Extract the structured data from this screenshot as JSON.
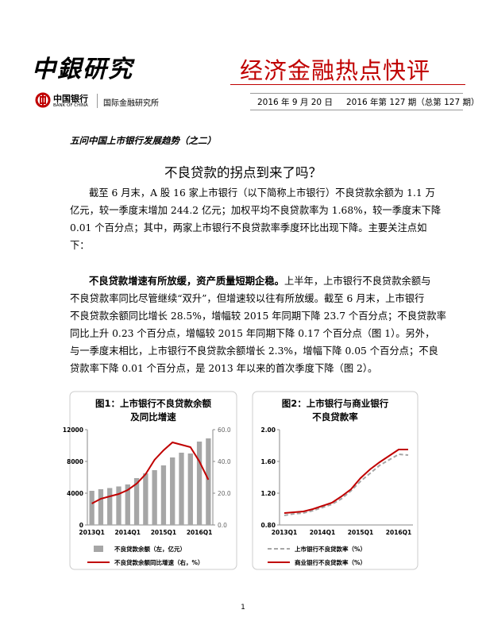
{
  "header": {
    "brand": "中銀研究",
    "report_title": "经济金融热点快评",
    "bank_name": "中国银行",
    "bank_name_en": "BANK OF CHINA",
    "institute": "国际金融研究所",
    "date": "2016 年 9 月 20 日",
    "issue": "2016 年第 127 期（总第 127 期）"
  },
  "series_title": "五问中国上市银行发展趋势（之二）",
  "title": "不良贷款的拐点到来了吗？",
  "paragraphs": [
    {
      "lines": [
        "截至 6 月末，A 股 16 家上市银行（以下简称上市银行）不良贷款余额为 1.1 万",
        "亿元，较一季度末增加 244.2 亿元；加权平均不良贷款率为 1.68%，较一季度末下降",
        "0.01 个百分点；其中，两家上市银行不良贷款率季度环比出现下降。主要关注点如",
        "下："
      ]
    },
    {
      "lead": "不良贷款增速有所放缓，资产质量短期企稳。",
      "lines": [
        "上半年，上市银行不良贷款余额与",
        "不良贷款率同比尽管继续“双升”，但增速较以往有所放缓。截至 6 月末，上市银行",
        "不良贷款余额同比增长 28.5%，增幅较 2015 年同期下降 23.7 个百分点；不良贷款率",
        "同比上升 0.23 个百分点，增幅较 2015 年同期下降 0.17 个百分点（图 1）。另外，",
        "与一季度末相比，上市银行不良贷款余额增长 2.3%，增幅下降 0.05 个百分点；不良",
        "贷款率下降 0.01 个百分点，是 2013 年以来的首次季度下降（图 2）。"
      ]
    }
  ],
  "chart_data": [
    {
      "type": "bar",
      "title": [
        "图1：上市银行不良贷款余额",
        "及同比增速"
      ],
      "categories": [
        "2013Q1",
        null,
        null,
        null,
        "2014Q1",
        null,
        null,
        null,
        "2015Q1",
        null,
        null,
        null,
        "2016Q1",
        null
      ],
      "series": [
        {
          "name": "不良贷款余额（左，亿元）",
          "type": "bar",
          "color": "#a6a6a6",
          "values": [
            4300,
            4500,
            4650,
            4850,
            5100,
            5900,
            6500,
            6900,
            7500,
            8500,
            9100,
            9000,
            10500,
            10900
          ]
        },
        {
          "name": "不良贷款余额同比增速（右，%）",
          "type": "line",
          "axis": "y2",
          "color": "#c00000",
          "values": [
            13.5,
            16.5,
            18,
            19.5,
            22,
            26,
            32,
            41,
            47,
            52,
            50.5,
            49,
            40,
            28.5
          ]
        }
      ],
      "ylim": [
        0,
        12000
      ],
      "yticks": [
        0,
        4000,
        8000,
        12000
      ],
      "y2lim": [
        0,
        60
      ],
      "y2ticks": [
        {
          "value": 0,
          "label": "0.0"
        },
        {
          "value": 20,
          "label": "20.0"
        },
        {
          "value": 40,
          "label": "40.0"
        },
        {
          "value": 60,
          "label": "60.0"
        }
      ],
      "legend": "bottom"
    },
    {
      "type": "line",
      "title": [
        "图2：上市银行与商业银行",
        "不良贷款率"
      ],
      "categories": [
        "2013Q1",
        null,
        null,
        null,
        "2014Q1",
        null,
        null,
        null,
        "2015Q1",
        null,
        null,
        null,
        "2016Q1",
        null
      ],
      "series": [
        {
          "name": "上市银行不良贷款率（%）",
          "type": "line",
          "color": "#a6a6a6",
          "line_style": "dashed",
          "values": [
            0.92,
            0.94,
            0.95,
            0.98,
            1.02,
            1.06,
            1.13,
            1.23,
            1.35,
            1.45,
            1.55,
            1.62,
            1.69,
            1.68
          ]
        },
        {
          "name": "商业银行不良贷款率（%）",
          "type": "line",
          "color": "#c00000",
          "line_style": "solid",
          "values": [
            0.95,
            0.96,
            0.97,
            1.0,
            1.04,
            1.08,
            1.16,
            1.25,
            1.39,
            1.5,
            1.59,
            1.67,
            1.75,
            1.75
          ]
        }
      ],
      "ylim": [
        0.8,
        2.0
      ],
      "yticks": [
        {
          "value": 0.8,
          "label": "0.80"
        },
        {
          "value": 1.2,
          "label": "1.20"
        },
        {
          "value": 1.6,
          "label": "1.60"
        },
        {
          "value": 2.0,
          "label": "2.00"
        }
      ],
      "legend": "bottom"
    }
  ],
  "page_number": "1"
}
